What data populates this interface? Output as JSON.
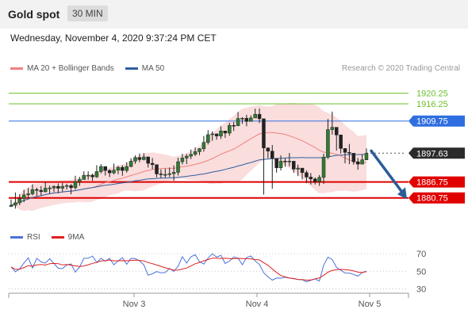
{
  "header": {
    "title": "Gold spot",
    "timeframe": "30 MIN"
  },
  "timestamp": "Wednesday, November 4, 2020 9:37:24 PM CET",
  "legend_main": [
    {
      "label": "MA 20 + Bollinger Bands",
      "color": "#f08080"
    },
    {
      "label": "MA 50",
      "color": "#2f5f9f"
    }
  ],
  "credit": "Research © 2020 Trading Central",
  "legend_rsi": [
    {
      "label": "RSI",
      "color": "#4a73d8"
    },
    {
      "label": "9MA",
      "color": "#e02020"
    }
  ],
  "colors": {
    "support": "#e00000",
    "target": "#2a5d9a",
    "current": "#2b2b2b",
    "resistance_thin": "#7fc44e",
    "pivot": "#2f6ee0",
    "band": "#f9d7d7"
  },
  "chart_data": [
    {
      "type": "candlestick",
      "ylim": [
        1872,
        1927
      ],
      "x_ticks": [
        "Nov 3",
        "Nov 4",
        "Nov 5"
      ],
      "levels": [
        {
          "label": "1920.25",
          "value": 1920.25,
          "role": "resistance",
          "color": "#6bbf2a"
        },
        {
          "label": "1916.25",
          "value": 1916.25,
          "role": "resistance",
          "color": "#6bbf2a"
        },
        {
          "label": "1909.75",
          "value": 1909.75,
          "role": "pivot",
          "color": "#2f6ee0"
        },
        {
          "label": "1897.63",
          "value": 1897.63,
          "role": "last",
          "color": "#2b2b2b"
        },
        {
          "label": "1886.75",
          "value": 1886.75,
          "role": "support",
          "color": "#e00000"
        },
        {
          "label": "1880.75",
          "value": 1880.75,
          "role": "support",
          "color": "#e00000"
        }
      ],
      "forecast": {
        "from": 1898.5,
        "to": 1881.5,
        "direction": "down"
      },
      "series": [
        {
          "name": "MA 20 + Bollinger Bands",
          "color": "#f08080"
        },
        {
          "name": "MA 50",
          "color": "#2f5f9f"
        }
      ],
      "close": [
        1878.0,
        1878.9,
        1880.5,
        1881.9,
        1882.3,
        1883.9,
        1883.6,
        1883.1,
        1884.4,
        1884.5,
        1885.1,
        1884.4,
        1885.1,
        1885.4,
        1884.6,
        1886.9,
        1887.7,
        1889.3,
        1889.3,
        1888.7,
        1890.7,
        1892.6,
        1891.1,
        1890.2,
        1891.2,
        1892.3,
        1891.1,
        1892.6,
        1894.6,
        1896.0,
        1895.2,
        1896.2,
        1893.8,
        1893.3,
        1889.8,
        1889.6,
        1889.6,
        1889.9,
        1890.4,
        1894.4,
        1895.8,
        1896.5,
        1897.2,
        1898.2,
        1899.3,
        1901.7,
        1904.6,
        1904.9,
        1904.1,
        1906.0,
        1905.2,
        1908.1,
        1908.0,
        1910.7,
        1910.8,
        1909.6,
        1910.9,
        1912.3,
        1910.6,
        1899.6,
        1898.4,
        1895.6,
        1892.1,
        1894.6,
        1894.5,
        1894.6,
        1891.6,
        1892.0,
        1890.3,
        1888.6,
        1887.9,
        1886.9,
        1888.5,
        1896.1,
        1906.5,
        1907.4,
        1904.5,
        1899.4,
        1897.9,
        1897.6,
        1894.4,
        1893.5,
        1895.1,
        1897.6
      ],
      "high": [
        1880.2,
        1882.8,
        1882.2,
        1883.8,
        1884.5,
        1885.9,
        1884.6,
        1885.2,
        1886.7,
        1885.4,
        1885.5,
        1886.2,
        1886.4,
        1886.1,
        1886.0,
        1889.1,
        1888.7,
        1890.8,
        1890.8,
        1889.9,
        1893.1,
        1893.5,
        1892.6,
        1891.6,
        1893.7,
        1892.8,
        1893.1,
        1894.2,
        1895.7,
        1896.8,
        1897.5,
        1897.6,
        1896.4,
        1895.8,
        1891.8,
        1891.5,
        1891.8,
        1892.2,
        1893.0,
        1895.9,
        1897.4,
        1897.3,
        1899.0,
        1899.8,
        1899.5,
        1904.1,
        1906.3,
        1905.9,
        1905.0,
        1907.7,
        1906.0,
        1909.1,
        1909.4,
        1913.1,
        1911.2,
        1912.1,
        1911.9,
        1914.4,
        1914.5,
        1902.7,
        1899.8,
        1900.7,
        1894.5,
        1896.8,
        1895.7,
        1897.7,
        1894.3,
        1893.3,
        1891.2,
        1891.1,
        1890.1,
        1888.5,
        1889.4,
        1897.4,
        1910.5,
        1913.3,
        1906.3,
        1904.6,
        1898.9,
        1901.1,
        1897.3,
        1895.8,
        1897.3,
        1899.4
      ],
      "low": [
        1877.3,
        1876.7,
        1878.0,
        1879.1,
        1880.5,
        1881.7,
        1881.5,
        1881.6,
        1882.8,
        1882.4,
        1883.0,
        1882.5,
        1883.2,
        1883.9,
        1882.1,
        1883.9,
        1885.3,
        1887.6,
        1887.6,
        1887.2,
        1888.3,
        1890.0,
        1889.2,
        1888.6,
        1889.6,
        1889.7,
        1889.1,
        1890.3,
        1892.3,
        1893.6,
        1894.2,
        1894.9,
        1892.2,
        1891.6,
        1888.5,
        1888.2,
        1888.4,
        1888.6,
        1887.2,
        1889.2,
        1893.4,
        1893.5,
        1895.4,
        1896.5,
        1896.9,
        1898.2,
        1900.9,
        1902.3,
        1902.7,
        1903.0,
        1903.4,
        1904.2,
        1906.0,
        1907.8,
        1908.7,
        1907.8,
        1909.7,
        1911.3,
        1909.0,
        1882.0,
        1895.7,
        1884.2,
        1890.3,
        1891.1,
        1892.5,
        1892.7,
        1890.2,
        1889.0,
        1887.7,
        1886.3,
        1885.8,
        1885.8,
        1885.3,
        1886.0,
        1895.4,
        1904.6,
        1898.6,
        1897.5,
        1893.8,
        1893.5,
        1893.3,
        1891.4,
        1893.8,
        1895.0
      ],
      "ma50": [
        1878.0,
        1878.5,
        1879.1,
        1879.8,
        1880.3,
        1880.9,
        1881.3,
        1881.6,
        1882.0,
        1882.3,
        1882.6,
        1882.8,
        1883.0,
        1883.2,
        1883.3,
        1883.5,
        1883.8,
        1884.1,
        1884.4,
        1884.6,
        1884.9,
        1885.2,
        1885.5,
        1885.7,
        1885.9,
        1886.2,
        1886.4,
        1886.6,
        1886.9,
        1887.2,
        1887.4,
        1887.7,
        1887.9,
        1888.0,
        1888.1,
        1888.2,
        1888.2,
        1888.3,
        1888.4,
        1888.5,
        1888.7,
        1888.9,
        1889.1,
        1889.3,
        1889.6,
        1889.8,
        1890.1,
        1890.5,
        1890.8,
        1891.1,
        1891.5,
        1891.9,
        1892.3,
        1892.8,
        1893.2,
        1893.7,
        1894.1,
        1894.6,
        1895.1,
        1895.3,
        1895.4,
        1895.6,
        1895.6,
        1895.7,
        1895.8,
        1895.9,
        1895.9,
        1895.9,
        1896.0,
        1895.9,
        1895.9,
        1895.9,
        1895.9,
        1896.0,
        1896.3,
        1896.5,
        1896.8,
        1896.9,
        1897.0,
        1897.1,
        1897.1,
        1897.1,
        1897.1,
        1897.2
      ],
      "ma20": [
        1878.0,
        1878.5,
        1879.1,
        1879.8,
        1880.3,
        1880.9,
        1881.3,
        1881.6,
        1882.0,
        1882.3,
        1882.6,
        1882.8,
        1883.0,
        1883.2,
        1883.3,
        1883.5,
        1883.8,
        1884.1,
        1884.4,
        1884.6,
        1885.2,
        1885.9,
        1886.5,
        1886.9,
        1887.3,
        1887.8,
        1888.2,
        1888.7,
        1889.2,
        1889.7,
        1890.1,
        1890.7,
        1891.1,
        1891.5,
        1891.7,
        1891.8,
        1891.9,
        1891.9,
        1891.9,
        1892.2,
        1892.5,
        1892.7,
        1893.0,
        1893.4,
        1893.8,
        1894.3,
        1894.9,
        1895.6,
        1896.4,
        1897.2,
        1897.9,
        1898.5,
        1899.2,
        1900.1,
        1901.1,
        1902.1,
        1903.1,
        1904.0,
        1904.9,
        1905.2,
        1905.4,
        1905.4,
        1905.2,
        1905.0,
        1904.7,
        1904.2,
        1903.6,
        1903.0,
        1902.3,
        1901.5,
        1900.6,
        1899.8,
        1898.7,
        1898.0,
        1897.8,
        1897.6,
        1897.2,
        1896.6,
        1895.8,
        1895.1,
        1894.4,
        1893.7,
        1893.9,
        1894.3
      ],
      "bb_upper": [
        1878.0,
        1879.7,
        1882.0,
        1883.9,
        1884.6,
        1885.9,
        1886.2,
        1886.2,
        1886.6,
        1886.9,
        1887.1,
        1887.2,
        1887.4,
        1887.5,
        1887.6,
        1887.9,
        1888.3,
        1889.1,
        1889.6,
        1889.8,
        1890.3,
        1891.3,
        1892.0,
        1892.2,
        1892.6,
        1893.2,
        1893.3,
        1893.9,
        1895.0,
        1896.1,
        1896.8,
        1897.7,
        1897.8,
        1897.9,
        1897.7,
        1897.4,
        1897.1,
        1896.7,
        1896.3,
        1896.5,
        1897.0,
        1897.7,
        1898.5,
        1899.4,
        1900.3,
        1901.7,
        1903.7,
        1905.3,
        1906.6,
        1908.2,
        1909.1,
        1910.6,
        1911.7,
        1913.3,
        1914.4,
        1914.8,
        1915.2,
        1915.5,
        1915.8,
        1915.4,
        1915.2,
        1915.4,
        1916.0,
        1916.2,
        1916.4,
        1916.5,
        1916.6,
        1916.4,
        1916.3,
        1916.3,
        1916.0,
        1915.9,
        1914.9,
        1913.5,
        1912.8,
        1912.3,
        1911.0,
        1909.8,
        1908.2,
        1906.9,
        1905.7,
        1904.1,
        1904.2,
        1904.5
      ],
      "bb_lower": [
        1878.0,
        1877.4,
        1876.3,
        1875.8,
        1876.1,
        1875.9,
        1876.4,
        1877.0,
        1877.3,
        1877.7,
        1878.1,
        1878.4,
        1878.7,
        1878.9,
        1879.0,
        1879.1,
        1879.3,
        1879.1,
        1879.1,
        1879.4,
        1880.0,
        1880.4,
        1881.0,
        1881.7,
        1882.1,
        1882.4,
        1883.2,
        1883.6,
        1883.4,
        1883.3,
        1883.5,
        1883.6,
        1884.4,
        1885.1,
        1885.7,
        1886.2,
        1886.6,
        1887.2,
        1887.6,
        1887.9,
        1888.0,
        1887.7,
        1887.5,
        1887.4,
        1887.3,
        1886.9,
        1886.2,
        1885.9,
        1886.2,
        1886.1,
        1886.6,
        1886.5,
        1886.7,
        1886.9,
        1887.7,
        1889.5,
        1891.0,
        1892.4,
        1894.0,
        1894.9,
        1895.6,
        1895.4,
        1894.4,
        1893.8,
        1892.9,
        1891.9,
        1890.7,
        1889.6,
        1888.3,
        1886.7,
        1885.2,
        1883.7,
        1882.5,
        1882.5,
        1882.8,
        1882.9,
        1883.4,
        1883.4,
        1883.5,
        1883.3,
        1883.1,
        1883.3,
        1883.7,
        1884.1
      ]
    },
    {
      "type": "line",
      "ylim": [
        25,
        80
      ],
      "y_ticks": [
        70,
        50,
        30
      ],
      "series": [
        {
          "name": "RSI",
          "color": "#4a73d8"
        },
        {
          "name": "9MA",
          "color": "#e02020"
        }
      ],
      "rsi": [
        54.9,
        49.3,
        52.9,
        59.4,
        65.3,
        53.8,
        64.8,
        60.6,
        59.3,
        64.2,
        58.9,
        53.4,
        53.0,
        57.3,
        58.3,
        49.1,
        54.9,
        64.8,
        64.8,
        67.3,
        60.1,
        64.8,
        61.3,
        64.7,
        57.4,
        61.7,
        65.5,
        57.9,
        64.7,
        64.5,
        61.7,
        57.4,
        45.6,
        47.1,
        49.6,
        48.2,
        48.5,
        53.3,
        49.7,
        55.7,
        66.6,
        59.3,
        66.5,
        68.8,
        60.9,
        58.2,
        64.9,
        69.9,
        66.0,
        68.2,
        58.9,
        61.5,
        66.3,
        64.9,
        57.5,
        65.6,
        67.4,
        61.7,
        57.6,
        48.3,
        43.6,
        39.9,
        42.2,
        42.1,
        43.1,
        42.2,
        41.5,
        40.7,
        40.3,
        38.0,
        39.8,
        41.3,
        38.8,
        56.8,
        66.1,
        63.3,
        54.4,
        51.2,
        48.0,
        47.9,
        46.4,
        44.5,
        48.4,
        50.2
      ],
      "ma9": [
        54.9,
        52.1,
        52.4,
        54.2,
        56.4,
        55.9,
        57.2,
        57.6,
        57.0,
        58.6,
        58.9,
        58.6,
        57.2,
        57.6,
        56.9,
        56.1,
        55.4,
        56.0,
        57.4,
        59.0,
        60.0,
        61.7,
        62.1,
        62.8,
        61.9,
        62.0,
        62.1,
        62.0,
        62.3,
        62.7,
        62.3,
        61.8,
        59.9,
        58.6,
        57.1,
        55.6,
        53.9,
        52.6,
        51.2,
        51.4,
        52.5,
        53.7,
        56.0,
        58.5,
        60.1,
        62.0,
        63.3,
        64.9,
        64.8,
        64.6,
        64.8,
        64.5,
        64.2,
        64.7,
        64.5,
        64.2,
        64.1,
        63.3,
        62.9,
        59.6,
        56.7,
        52.6,
        48.6,
        45.1,
        43.6,
        42.4,
        41.8,
        40.7,
        40.6,
        39.9,
        40.1,
        41.3,
        42.3,
        45.4,
        48.9,
        51.0,
        51.7,
        52.1,
        51.8,
        51.4,
        50.3,
        49.0,
        48.5,
        49.6
      ]
    }
  ]
}
